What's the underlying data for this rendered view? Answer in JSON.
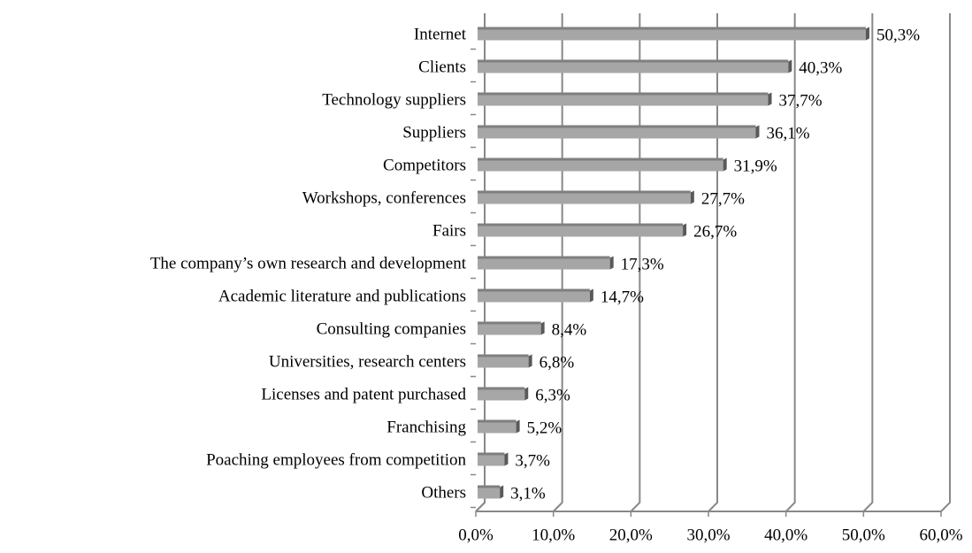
{
  "chart_data": {
    "type": "bar",
    "orientation": "horizontal",
    "categories": [
      "Internet",
      "Clients",
      "Technology suppliers",
      "Suppliers",
      "Competitors",
      "Workshops, conferences",
      "Fairs",
      "The company’s own research and development",
      "Academic literature and publications",
      "Consulting companies",
      "Universities, research centers",
      "Licenses and patent purchased",
      "Franchising",
      "Poaching employees from competition",
      "Others"
    ],
    "values": [
      50.3,
      40.3,
      37.7,
      36.1,
      31.9,
      27.7,
      26.7,
      17.3,
      14.7,
      8.4,
      6.8,
      6.3,
      5.2,
      3.7,
      3.1
    ],
    "value_labels": [
      "50,3%",
      "40,3%",
      "37,7%",
      "36,1%",
      "31,9%",
      "27,7%",
      "26,7%",
      "17,3%",
      "14,7%",
      "8,4%",
      "6,8%",
      "6,3%",
      "5,2%",
      "3,7%",
      "3,1%"
    ],
    "color": "#a6a6a6",
    "xlim": [
      0,
      60
    ],
    "xticks": [
      {
        "value": 0,
        "label": "0,0%"
      },
      {
        "value": 10,
        "label": "10,0%"
      },
      {
        "value": 20,
        "label": "20,0%"
      },
      {
        "value": 30,
        "label": "30,0%"
      },
      {
        "value": 40,
        "label": "40,0%"
      },
      {
        "value": 50,
        "label": "50,0%"
      },
      {
        "value": 60,
        "label": "60,0%"
      }
    ],
    "grid": true
  }
}
